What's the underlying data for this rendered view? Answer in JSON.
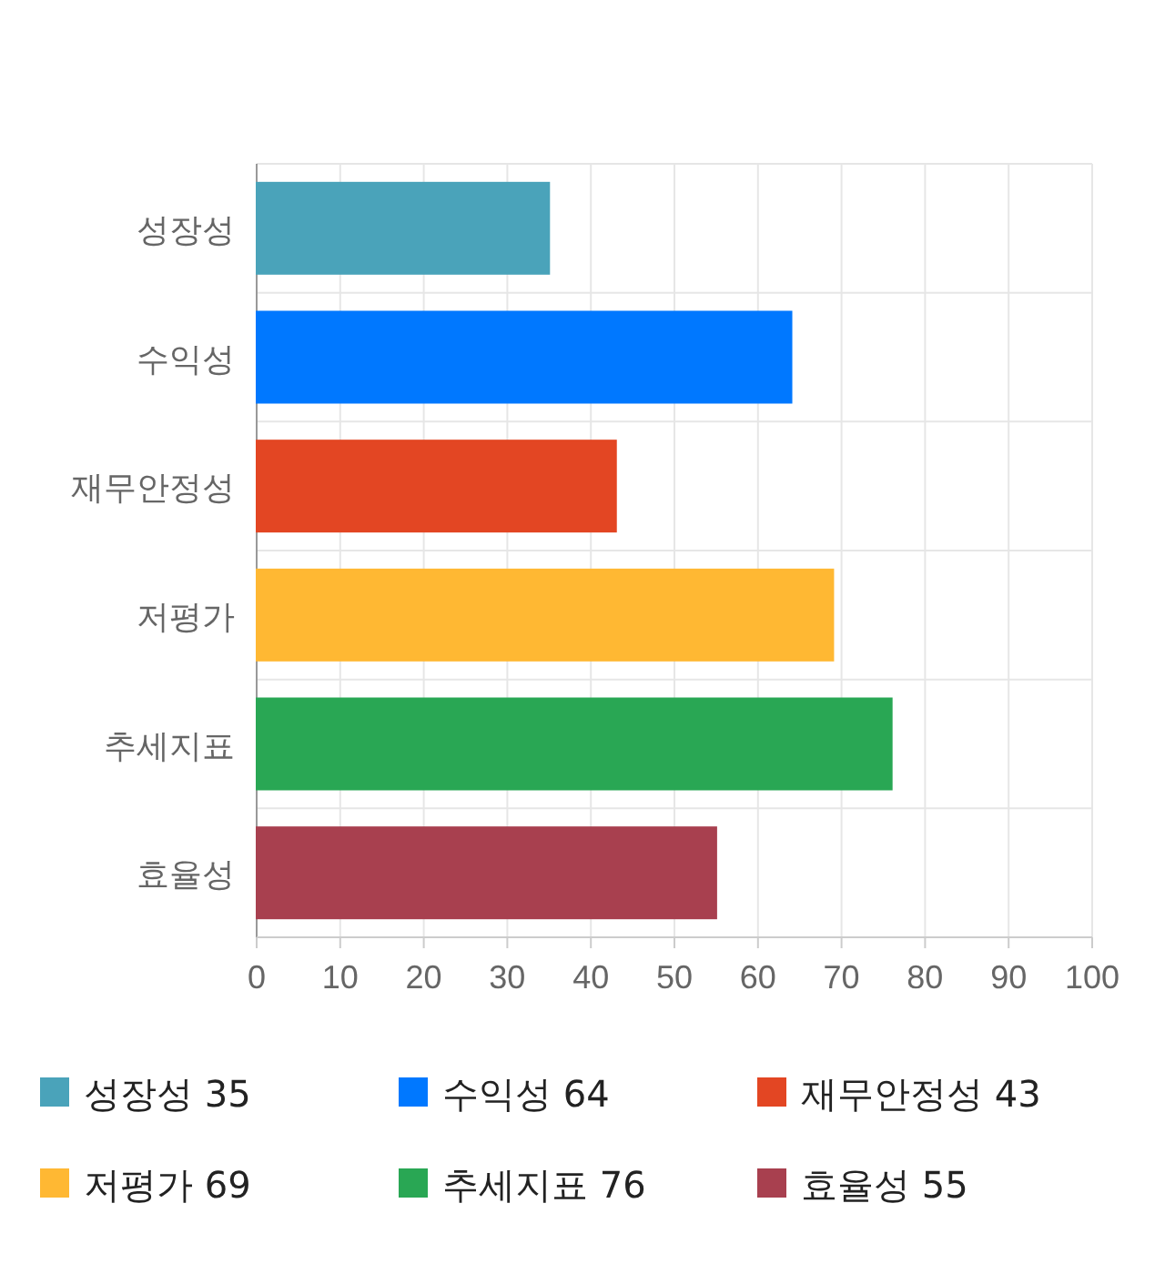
{
  "chart_data": {
    "type": "bar",
    "orientation": "horizontal",
    "categories": [
      "성장성",
      "수익성",
      "재무안정성",
      "저평가",
      "추세지표",
      "효율성"
    ],
    "series": [
      {
        "name": "성장성 35",
        "color": "#4aa3ba",
        "values": [
          35,
          null,
          null,
          null,
          null,
          null
        ]
      },
      {
        "name": "수익성 64",
        "color": "#0078ff",
        "values": [
          null,
          64,
          null,
          null,
          null,
          null
        ]
      },
      {
        "name": "재무안정성 43",
        "color": "#e34623",
        "values": [
          null,
          null,
          43,
          null,
          null,
          null
        ]
      },
      {
        "name": "저평가 69",
        "color": "#ffb833",
        "values": [
          null,
          null,
          null,
          69,
          null,
          null
        ]
      },
      {
        "name": "추세지표 76",
        "color": "#29a754",
        "values": [
          null,
          null,
          null,
          null,
          76,
          null
        ]
      },
      {
        "name": "효율성 55",
        "color": "#a8404f",
        "values": [
          null,
          null,
          null,
          null,
          null,
          55
        ]
      }
    ],
    "xlim": [
      0,
      100
    ],
    "xticks": [
      0,
      10,
      20,
      30,
      40,
      50,
      60,
      70,
      80,
      90,
      100
    ],
    "grid": true,
    "legend": "bottom"
  }
}
